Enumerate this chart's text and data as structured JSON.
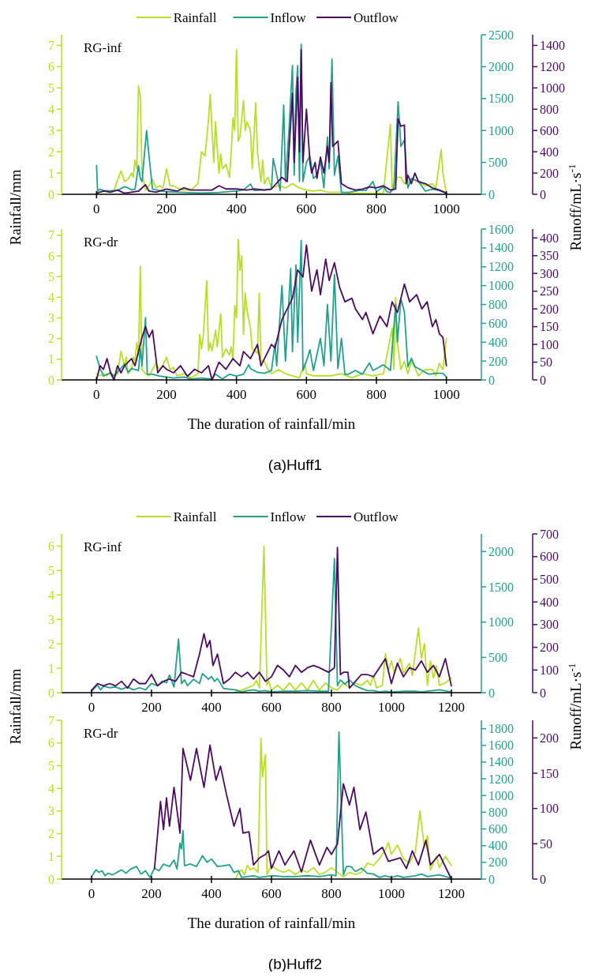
{
  "chart_data": [
    {
      "type": "line",
      "title": "RG-inf",
      "ylabel": "Rainfall/mm",
      "y3label": "Runoff/mL·s$^{-1}$",
      "legend": "top",
      "xlim": [
        -100,
        1100
      ],
      "xticks": [
        0,
        200,
        400,
        600,
        800,
        1000
      ],
      "ylim": [
        0,
        7.5
      ],
      "yticks": [
        0,
        1,
        2,
        3,
        4,
        5,
        6,
        7
      ],
      "y2lim": [
        0,
        2500
      ],
      "y2ticks": [
        0,
        500,
        1000,
        1500,
        2000,
        2500
      ],
      "y3lim": [
        0,
        1500
      ],
      "y3ticks": [
        0,
        200,
        400,
        600,
        800,
        1000,
        1200,
        1400
      ],
      "series": [
        {
          "name": "Rainfall",
          "color": "#b8de29",
          "x": [
            10,
            30,
            50,
            70,
            80,
            90,
            100,
            105,
            110,
            115,
            120,
            125,
            130,
            140,
            150,
            160,
            170,
            180,
            190,
            200,
            210,
            220,
            230,
            250,
            270,
            290,
            300,
            310,
            320,
            325,
            330,
            335,
            340,
            350,
            355,
            360,
            370,
            380,
            385,
            390,
            395,
            400,
            405,
            410,
            420,
            425,
            430,
            440,
            445,
            455,
            460,
            470,
            475,
            480,
            490,
            500,
            520,
            540,
            560,
            580,
            600,
            620,
            640,
            660,
            680,
            700,
            720,
            760,
            800,
            820,
            840,
            845,
            860,
            870,
            880,
            900,
            920,
            940,
            960,
            970,
            985,
            990,
            1000
          ],
          "values": [
            0.1,
            0.15,
            0.2,
            1.1,
            0.6,
            0.7,
            1.0,
            0.8,
            1.6,
            1.2,
            5.1,
            4.6,
            1.0,
            0.2,
            0.4,
            0.7,
            0.3,
            0.4,
            0.3,
            1.2,
            0.4,
            0.4,
            0.3,
            0.2,
            0.2,
            0.5,
            2.0,
            1.8,
            3.5,
            4.7,
            3.0,
            1.5,
            3.4,
            1.0,
            1.9,
            1.2,
            1.4,
            0.8,
            2.0,
            3.6,
            3.0,
            6.8,
            2.5,
            2.7,
            4.4,
            3.0,
            3.4,
            3.0,
            1.2,
            4.3,
            2.0,
            0.6,
            1.6,
            0.5,
            0.8,
            0.3,
            0.4,
            0.3,
            0.5,
            0.3,
            0.2,
            0.15,
            0.2,
            0.1,
            0.1,
            0.1,
            0.05,
            0.05,
            0.05,
            0.05,
            3.3,
            0.3,
            0.8,
            0.8,
            0.5,
            0.7,
            0.6,
            0.4,
            0.5,
            0.3,
            2.1,
            1.0,
            0.05
          ]
        },
        {
          "name": "Inflow",
          "color": "#23a08c",
          "axis": "y2",
          "x": [
            0,
            3,
            10,
            20,
            40,
            60,
            80,
            90,
            100,
            110,
            120,
            125,
            130,
            143,
            150,
            160,
            200,
            250,
            300,
            350,
            400,
            420,
            440,
            450,
            480,
            500,
            505,
            515,
            525,
            535,
            540,
            550,
            560,
            565,
            570,
            575,
            580,
            585,
            590,
            600,
            610,
            620,
            630,
            640,
            650,
            660,
            665,
            673,
            680,
            690,
            700,
            720,
            750,
            770,
            790,
            800,
            820,
            830,
            840,
            850,
            862,
            870,
            880,
            890,
            900,
            920,
            940,
            960,
            980,
            1000
          ],
          "values": [
            450,
            50,
            80,
            60,
            50,
            60,
            120,
            100,
            70,
            80,
            450,
            250,
            200,
            1000,
            600,
            80,
            40,
            30,
            20,
            30,
            50,
            70,
            160,
            60,
            70,
            80,
            560,
            300,
            60,
            1400,
            200,
            1000,
            2020,
            300,
            1600,
            2020,
            200,
            2350,
            200,
            500,
            600,
            250,
            300,
            520,
            100,
            900,
            400,
            2120,
            300,
            600,
            30,
            30,
            60,
            60,
            200,
            40,
            120,
            40,
            30,
            100,
            1450,
            750,
            850,
            100,
            250,
            200,
            50,
            80,
            60,
            20
          ]
        },
        {
          "name": "Outflow",
          "color": "#4a0c5e",
          "axis": "y3",
          "x": [
            0,
            20,
            40,
            60,
            80,
            100,
            120,
            140,
            150,
            170,
            200,
            230,
            250,
            270,
            300,
            330,
            350,
            370,
            400,
            430,
            450,
            480,
            500,
            530,
            545,
            560,
            565,
            575,
            580,
            585,
            590,
            600,
            610,
            615,
            625,
            630,
            640,
            650,
            660,
            665,
            670,
            675,
            690,
            700,
            720,
            740,
            760,
            780,
            800,
            820,
            840,
            855,
            862,
            870,
            880,
            885,
            890,
            900,
            910,
            920,
            940,
            960,
            980,
            1000
          ],
          "values": [
            10,
            30,
            20,
            40,
            10,
            20,
            30,
            90,
            30,
            20,
            50,
            30,
            60,
            40,
            40,
            40,
            80,
            50,
            50,
            40,
            50,
            40,
            50,
            160,
            120,
            950,
            300,
            1100,
            400,
            1360,
            300,
            800,
            300,
            200,
            300,
            150,
            350,
            200,
            450,
            300,
            1050,
            450,
            500,
            100,
            60,
            40,
            50,
            70,
            60,
            80,
            40,
            50,
            710,
            640,
            650,
            100,
            180,
            100,
            200,
            120,
            100,
            60,
            40,
            10
          ]
        }
      ]
    },
    {
      "type": "line",
      "title": "RG-dr",
      "xlabel": "The duration of rainfall/min",
      "annotations": [
        "(a)Huff1"
      ],
      "xlim": [
        -100,
        1100
      ],
      "xticks": [
        0,
        200,
        400,
        600,
        800,
        1000
      ],
      "ylim": [
        0,
        7.3
      ],
      "yticks": [
        0,
        1,
        2,
        3,
        4,
        5,
        6,
        7
      ],
      "y2lim": [
        0,
        1600
      ],
      "y2ticks": [
        0,
        200,
        400,
        600,
        800,
        1000,
        1200,
        1400,
        1600
      ],
      "y3lim": [
        0,
        425
      ],
      "y3ticks": [
        0,
        50,
        100,
        150,
        200,
        250,
        300,
        350,
        400
      ],
      "series": [
        {
          "color": "#b8de29",
          "x": [
            0,
            10,
            20,
            30,
            40,
            50,
            60,
            70,
            80,
            85,
            90,
            100,
            105,
            110,
            115,
            120,
            125,
            130,
            140,
            150,
            160,
            170,
            180,
            190,
            200,
            210,
            220,
            230,
            250,
            270,
            290,
            295,
            300,
            305,
            315,
            320,
            325,
            330,
            340,
            345,
            355,
            360,
            370,
            380,
            385,
            390,
            395,
            400,
            405,
            410,
            415,
            420,
            425,
            430,
            440,
            445,
            460,
            465,
            470,
            480,
            490,
            500,
            520,
            540,
            560,
            580,
            595,
            600,
            620,
            650,
            670,
            700,
            730,
            760,
            790,
            820,
            845,
            850,
            855,
            860,
            870,
            880,
            890,
            900,
            910,
            920,
            940,
            960,
            970,
            980,
            990,
            1000
          ],
          "values": [
            0.3,
            0.2,
            0.3,
            0.2,
            0.4,
            0.2,
            0.3,
            1.4,
            0.7,
            1.1,
            0.3,
            0.5,
            1.1,
            0.9,
            1.8,
            1.2,
            5.5,
            0.5,
            0.3,
            0.2,
            0.5,
            0.8,
            0.5,
            0.7,
            1.1,
            0.5,
            0.6,
            0.2,
            0.3,
            0.1,
            0.3,
            2.2,
            1.5,
            2.1,
            4.8,
            1.4,
            1.8,
            1.4,
            2.4,
            1.6,
            3.2,
            1.1,
            1.5,
            1.2,
            1.6,
            1.0,
            3.6,
            3.0,
            6.8,
            5.3,
            6.0,
            2.2,
            4.2,
            3.4,
            2.5,
            1.5,
            1.3,
            4.2,
            0.9,
            0.9,
            0.5,
            0.3,
            0.5,
            0.3,
            0.2,
            0.1,
            0.8,
            0.3,
            0.2,
            0.2,
            0.2,
            0.3,
            0.1,
            0.3,
            0.2,
            0.3,
            2.5,
            0.5,
            4.0,
            1.8,
            0.5,
            0.9,
            0.3,
            0.9,
            0.6,
            0.2,
            0.5,
            0.5,
            0.2,
            0.8,
            0.5,
            2.0
          ]
        },
        {
          "color": "#23a08c",
          "axis": "y2",
          "x": [
            0,
            10,
            20,
            30,
            40,
            50,
            60,
            80,
            90,
            100,
            120,
            125,
            130,
            140,
            145,
            160,
            180,
            200,
            220,
            250,
            270,
            300,
            330,
            340,
            360,
            380,
            400,
            420,
            435,
            440,
            460,
            480,
            500,
            510,
            515,
            530,
            540,
            555,
            560,
            570,
            575,
            585,
            590,
            600,
            610,
            620,
            640,
            650,
            660,
            670,
            680,
            690,
            700,
            710,
            720,
            740,
            760,
            780,
            790,
            800,
            820,
            840,
            855,
            860,
            870,
            880,
            890,
            900,
            910,
            930,
            950,
            970,
            990,
            1000
          ],
          "values": [
            250,
            120,
            40,
            60,
            70,
            40,
            80,
            170,
            80,
            120,
            100,
            330,
            150,
            660,
            60,
            60,
            40,
            30,
            20,
            30,
            10,
            20,
            10,
            60,
            10,
            60,
            40,
            60,
            160,
            120,
            80,
            70,
            100,
            380,
            150,
            1000,
            200,
            1180,
            300,
            1220,
            400,
            1480,
            100,
            200,
            320,
            100,
            440,
            150,
            800,
            200,
            1120,
            120,
            440,
            60,
            60,
            100,
            60,
            180,
            100,
            120,
            160,
            100,
            800,
            400,
            860,
            720,
            140,
            230,
            140,
            100,
            60,
            70,
            70,
            30
          ]
        },
        {
          "color": "#4a0c5e",
          "axis": "y3",
          "x": [
            0,
            10,
            20,
            30,
            40,
            50,
            60,
            70,
            80,
            100,
            110,
            130,
            140,
            150,
            160,
            175,
            190,
            200,
            220,
            240,
            260,
            280,
            300,
            320,
            330,
            350,
            370,
            390,
            410,
            420,
            440,
            460,
            470,
            490,
            500,
            510,
            530,
            545,
            560,
            575,
            590,
            600,
            615,
            630,
            640,
            655,
            665,
            680,
            695,
            710,
            730,
            740,
            760,
            770,
            790,
            810,
            830,
            845,
            860,
            880,
            895,
            915,
            930,
            945,
            960,
            970,
            980,
            990,
            1000
          ],
          "values": [
            0,
            40,
            30,
            60,
            20,
            0,
            40,
            20,
            40,
            60,
            40,
            120,
            150,
            120,
            140,
            20,
            40,
            30,
            20,
            40,
            10,
            30,
            20,
            40,
            0,
            50,
            30,
            60,
            40,
            80,
            60,
            100,
            40,
            80,
            100,
            90,
            170,
            200,
            230,
            310,
            290,
            380,
            250,
            310,
            240,
            340,
            280,
            330,
            260,
            220,
            230,
            200,
            170,
            190,
            130,
            180,
            150,
            220,
            190,
            270,
            220,
            240,
            200,
            220,
            150,
            170,
            130,
            120,
            40
          ]
        }
      ]
    },
    {
      "type": "line",
      "title": "RG-inf",
      "ylabel": "Rainfall/mm",
      "y3label": "Runoff/mL·s$^{-1}$",
      "legend": "top",
      "xlim": [
        -100,
        1300
      ],
      "xticks": [
        0,
        200,
        400,
        600,
        800,
        1000,
        1200
      ],
      "ylim": [
        0,
        6.5
      ],
      "yticks": [
        0,
        1,
        2,
        3,
        4,
        5,
        6
      ],
      "y2lim": [
        0,
        2250
      ],
      "y2ticks": [
        0,
        500,
        1000,
        1500,
        2000
      ],
      "y3lim": [
        0,
        700
      ],
      "y3ticks": [
        0,
        100,
        200,
        300,
        400,
        500,
        600,
        700
      ],
      "series": [
        {
          "name": "Rainfall",
          "color": "#b8de29",
          "x": [
            480,
            500,
            520,
            540,
            550,
            560,
            575,
            585,
            590,
            600,
            620,
            640,
            660,
            680,
            700,
            720,
            740,
            760,
            780,
            800,
            820,
            840,
            860,
            880,
            900,
            920,
            930,
            940,
            950,
            970,
            980,
            990,
            1000,
            1010,
            1030,
            1040,
            1060,
            1070,
            1090,
            1100,
            1110,
            1120,
            1130,
            1140,
            1150,
            1160,
            1180,
            1200
          ],
          "values": [
            0.05,
            0.1,
            0.2,
            0.3,
            0.5,
            0.2,
            6.0,
            0.3,
            0.5,
            0.1,
            0.3,
            0.1,
            0.4,
            0.1,
            0.4,
            0.1,
            0.5,
            0.1,
            0.4,
            0.2,
            0.1,
            0.4,
            0.2,
            0.4,
            0.3,
            0.5,
            0.3,
            0.7,
            0.2,
            0.3,
            1.6,
            0.9,
            1.3,
            0.8,
            1.4,
            0.8,
            1.2,
            0.7,
            2.65,
            1.4,
            2.0,
            0.3,
            1.3,
            0.6,
            1.1,
            0.3,
            0.4,
            0.6
          ]
        },
        {
          "name": "Inflow",
          "color": "#23a08c",
          "axis": "y2",
          "x": [
            0,
            20,
            30,
            40,
            60,
            80,
            100,
            120,
            140,
            160,
            180,
            200,
            220,
            235,
            250,
            260,
            275,
            290,
            300,
            310,
            320,
            340,
            360,
            370,
            390,
            400,
            410,
            420,
            440,
            460,
            480,
            500,
            520,
            540,
            560,
            580,
            600,
            640,
            680,
            720,
            760,
            790,
            810,
            820,
            830,
            845,
            860,
            880,
            900,
            920,
            940,
            960,
            980,
            1000,
            1040,
            1080,
            1100,
            1120,
            1160,
            1200
          ],
          "values": [
            20,
            110,
            40,
            90,
            70,
            80,
            50,
            80,
            40,
            70,
            40,
            130,
            100,
            160,
            140,
            250,
            80,
            760,
            130,
            180,
            100,
            190,
            130,
            270,
            190,
            230,
            160,
            200,
            60,
            50,
            40,
            10,
            30,
            40,
            20,
            30,
            10,
            20,
            20,
            30,
            20,
            20,
            1900,
            100,
            180,
            120,
            180,
            100,
            60,
            30,
            30,
            10,
            20,
            10,
            20,
            20,
            10,
            20,
            40,
            10
          ]
        },
        {
          "name": "Outflow",
          "color": "#4a0c5e",
          "axis": "y3",
          "x": [
            0,
            20,
            40,
            60,
            80,
            100,
            120,
            140,
            160,
            180,
            200,
            220,
            240,
            260,
            280,
            300,
            320,
            340,
            360,
            375,
            385,
            395,
            405,
            420,
            440,
            460,
            480,
            500,
            520,
            540,
            560,
            580,
            600,
            620,
            640,
            660,
            680,
            700,
            720,
            740,
            760,
            790,
            810,
            820,
            830,
            840,
            855,
            860,
            880,
            900,
            920,
            940,
            980,
            1000,
            1020,
            1040,
            1060,
            1080,
            1100,
            1120,
            1140,
            1160,
            1180,
            1200
          ],
          "values": [
            10,
            40,
            30,
            40,
            30,
            50,
            20,
            60,
            40,
            40,
            80,
            30,
            50,
            60,
            50,
            90,
            80,
            70,
            170,
            260,
            200,
            230,
            120,
            170,
            40,
            60,
            90,
            70,
            90,
            60,
            90,
            50,
            70,
            120,
            100,
            70,
            120,
            90,
            110,
            120,
            110,
            90,
            110,
            640,
            80,
            90,
            90,
            20,
            50,
            80,
            80,
            70,
            150,
            40,
            130,
            70,
            110,
            100,
            140,
            90,
            120,
            70,
            150,
            30
          ]
        }
      ]
    },
    {
      "type": "line",
      "title": "RG-dr",
      "xlabel": "The duration of rainfall/min",
      "annotations": [
        "(b)Huff2"
      ],
      "xlim": [
        -100,
        1300
      ],
      "xticks": [
        0,
        200,
        400,
        600,
        800,
        1000,
        1200
      ],
      "ylim": [
        0,
        7
      ],
      "yticks": [
        0,
        1,
        2,
        3,
        4,
        5,
        6,
        7
      ],
      "y2lim": [
        0,
        1900
      ],
      "y2ticks": [
        0,
        200,
        400,
        600,
        800,
        1000,
        1200,
        1400,
        1600,
        1800
      ],
      "y3lim": [
        0,
        225
      ],
      "y3ticks": [
        0,
        50,
        100,
        150,
        200
      ],
      "series": [
        {
          "color": "#b8de29",
          "x": [
            480,
            490,
            500,
            510,
            520,
            530,
            540,
            555,
            565,
            570,
            580,
            585,
            600,
            620,
            640,
            660,
            680,
            700,
            720,
            740,
            760,
            780,
            800,
            820,
            840,
            860,
            880,
            900,
            920,
            940,
            960,
            980,
            990,
            1000,
            1020,
            1040,
            1060,
            1080,
            1095,
            1110,
            1120,
            1130,
            1150,
            1160,
            1180,
            1200
          ],
          "values": [
            0.0,
            0.3,
            0.4,
            0.2,
            0.6,
            0.4,
            0.5,
            0.3,
            6.2,
            4.5,
            5.5,
            0.2,
            0.6,
            0.4,
            0.3,
            0.4,
            0.2,
            0.4,
            0.3,
            0.5,
            0.2,
            0.3,
            0.5,
            0.3,
            0.1,
            0.3,
            0.2,
            0.3,
            0.7,
            0.6,
            0.9,
            1.3,
            1.6,
            1.1,
            1.5,
            0.9,
            0.7,
            1.2,
            3.0,
            1.4,
            1.9,
            0.4,
            1.0,
            0.5,
            1.0,
            0.6
          ]
        },
        {
          "color": "#23a08c",
          "axis": "y2",
          "x": [
            0,
            15,
            25,
            35,
            45,
            55,
            70,
            85,
            100,
            115,
            130,
            150,
            165,
            180,
            195,
            210,
            225,
            240,
            260,
            275,
            285,
            295,
            300,
            305,
            310,
            330,
            350,
            370,
            385,
            400,
            420,
            440,
            460,
            475,
            490,
            500,
            520,
            540,
            560,
            580,
            600,
            640,
            680,
            720,
            760,
            800,
            815,
            825,
            840,
            850,
            865,
            880,
            900,
            920,
            940,
            960,
            980,
            1000,
            1020,
            1040,
            1080,
            1100,
            1120,
            1160,
            1200
          ],
          "values": [
            30,
            110,
            80,
            100,
            40,
            70,
            50,
            80,
            110,
            70,
            120,
            150,
            60,
            100,
            20,
            130,
            100,
            180,
            150,
            230,
            120,
            430,
            360,
            580,
            160,
            180,
            150,
            280,
            200,
            240,
            150,
            160,
            170,
            80,
            100,
            20,
            30,
            40,
            20,
            30,
            40,
            30,
            30,
            40,
            30,
            50,
            40,
            1760,
            50,
            150,
            150,
            90,
            130,
            70,
            60,
            20,
            40,
            20,
            40,
            20,
            40,
            60,
            30,
            50,
            10
          ]
        },
        {
          "color": "#4a0c5e",
          "axis": "y3",
          "x": [
            210,
            230,
            240,
            250,
            260,
            275,
            295,
            305,
            330,
            350,
            375,
            395,
            415,
            430,
            450,
            475,
            495,
            505,
            525,
            540,
            560,
            580,
            590,
            600,
            625,
            645,
            675,
            700,
            730,
            760,
            785,
            800,
            820,
            840,
            860,
            875,
            895,
            915,
            940,
            970,
            990,
            1030,
            1050,
            1070,
            1090,
            1115,
            1130,
            1160,
            1200
          ],
          "values": [
            15,
            110,
            70,
            115,
            75,
            130,
            65,
            185,
            140,
            185,
            130,
            190,
            140,
            160,
            120,
            75,
            100,
            65,
            67,
            20,
            30,
            35,
            40,
            15,
            40,
            20,
            40,
            10,
            55,
            20,
            45,
            35,
            50,
            135,
            105,
            130,
            70,
            95,
            35,
            45,
            25,
            30,
            15,
            40,
            20,
            55,
            20,
            35,
            0
          ]
        }
      ]
    }
  ]
}
